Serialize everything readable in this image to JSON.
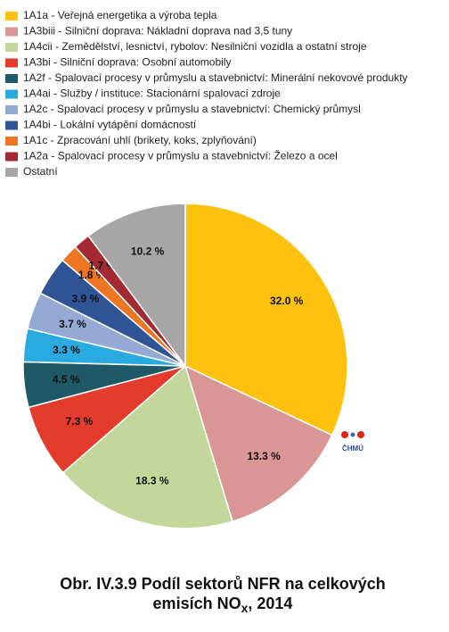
{
  "chart_data": {
    "type": "pie",
    "title": [
      "Obr. IV.3.9  Podíl sektorů NFR na celkových",
      "emisích NO",
      "x",
      ", 2014"
    ],
    "logo_text": "ČHMÚ",
    "categories": [
      "1A1a - Veřejná energetika a výroba tepla",
      "1A3biii - Silniční doprava: Nákladní doprava nad 3,5 tuny",
      "1A4cii - Zemědělství, lesnictví, rybolov: Nesilniční vozidla a ostatní stroje",
      "1A3bi - Silniční doprava: Osobní automobily",
      "1A2f - Spalovací procesy v průmyslu a stavebnictví: Minerální nekovové produkty",
      "1A4ai - Služby / instituce: Stacionární spalovací zdroje",
      "1A2c - Spalovací procesy v průmyslu a stavebnictví: Chemický průmysl",
      "1A4bi - Lokální vytápění domácností",
      "1A1c - Zpracování uhlí (brikety, koks, zplyňování)",
      "1A2a - Spalovací procesy v průmyslu a stavebnictví: Železo a ocel",
      "Ostatní"
    ],
    "values": [
      32.0,
      13.3,
      18.3,
      7.3,
      4.5,
      3.3,
      3.7,
      3.9,
      1.8,
      1.7,
      10.2
    ],
    "value_labels": [
      "32.0 %",
      "13.3 %",
      "18.3 %",
      "7.3 %",
      "4.5 %",
      "3.3 %",
      "3.7 %",
      "3.9 %",
      "1.8 %",
      "1.7 %",
      "10.2 %"
    ],
    "colors": [
      "#fdc10e",
      "#d99694",
      "#c4d79b",
      "#e33b2c",
      "#1f5866",
      "#29abe2",
      "#95a9d5",
      "#2f5597",
      "#ee7623",
      "#a32a35",
      "#a6a6a6"
    ]
  }
}
